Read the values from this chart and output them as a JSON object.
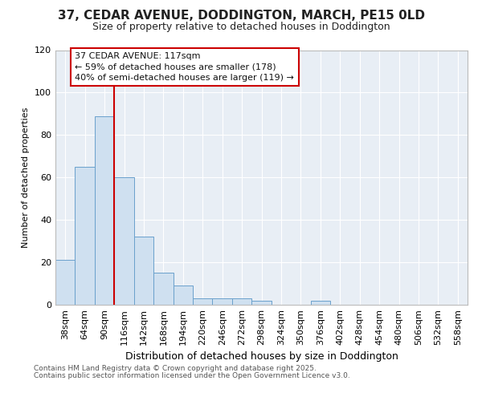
{
  "title_line1": "37, CEDAR AVENUE, DODDINGTON, MARCH, PE15 0LD",
  "title_line2": "Size of property relative to detached houses in Doddington",
  "xlabel": "Distribution of detached houses by size in Doddington",
  "ylabel": "Number of detached properties",
  "categories": [
    "38sqm",
    "64sqm",
    "90sqm",
    "116sqm",
    "142sqm",
    "168sqm",
    "194sqm",
    "220sqm",
    "246sqm",
    "272sqm",
    "298sqm",
    "324sqm",
    "350sqm",
    "376sqm",
    "402sqm",
    "428sqm",
    "454sqm",
    "480sqm",
    "506sqm",
    "532sqm",
    "558sqm"
  ],
  "values": [
    21,
    65,
    89,
    60,
    32,
    15,
    9,
    3,
    3,
    3,
    2,
    0,
    0,
    2,
    0,
    0,
    0,
    0,
    0,
    0,
    0
  ],
  "bar_color": "#cfe0f0",
  "bar_edge_color": "#6aa0cc",
  "vline_color": "#cc0000",
  "vline_x_index": 3,
  "annotation_title": "37 CEDAR AVENUE: 117sqm",
  "annotation_line1": "← 59% of detached houses are smaller (178)",
  "annotation_line2": "40% of semi-detached houses are larger (119) →",
  "annotation_box_facecolor": "#ffffff",
  "annotation_box_edgecolor": "#cc0000",
  "ylim": [
    0,
    120
  ],
  "yticks": [
    0,
    20,
    40,
    60,
    80,
    100,
    120
  ],
  "footnote_line1": "Contains HM Land Registry data © Crown copyright and database right 2025.",
  "footnote_line2": "Contains public sector information licensed under the Open Government Licence v3.0.",
  "fig_bg_color": "#ffffff",
  "plot_bg_color": "#e8eef5",
  "grid_color": "#ffffff",
  "title1_fontsize": 11,
  "title2_fontsize": 9,
  "ylabel_fontsize": 8,
  "xlabel_fontsize": 9,
  "tick_fontsize": 8,
  "annot_fontsize": 8,
  "footnote_fontsize": 6.5
}
